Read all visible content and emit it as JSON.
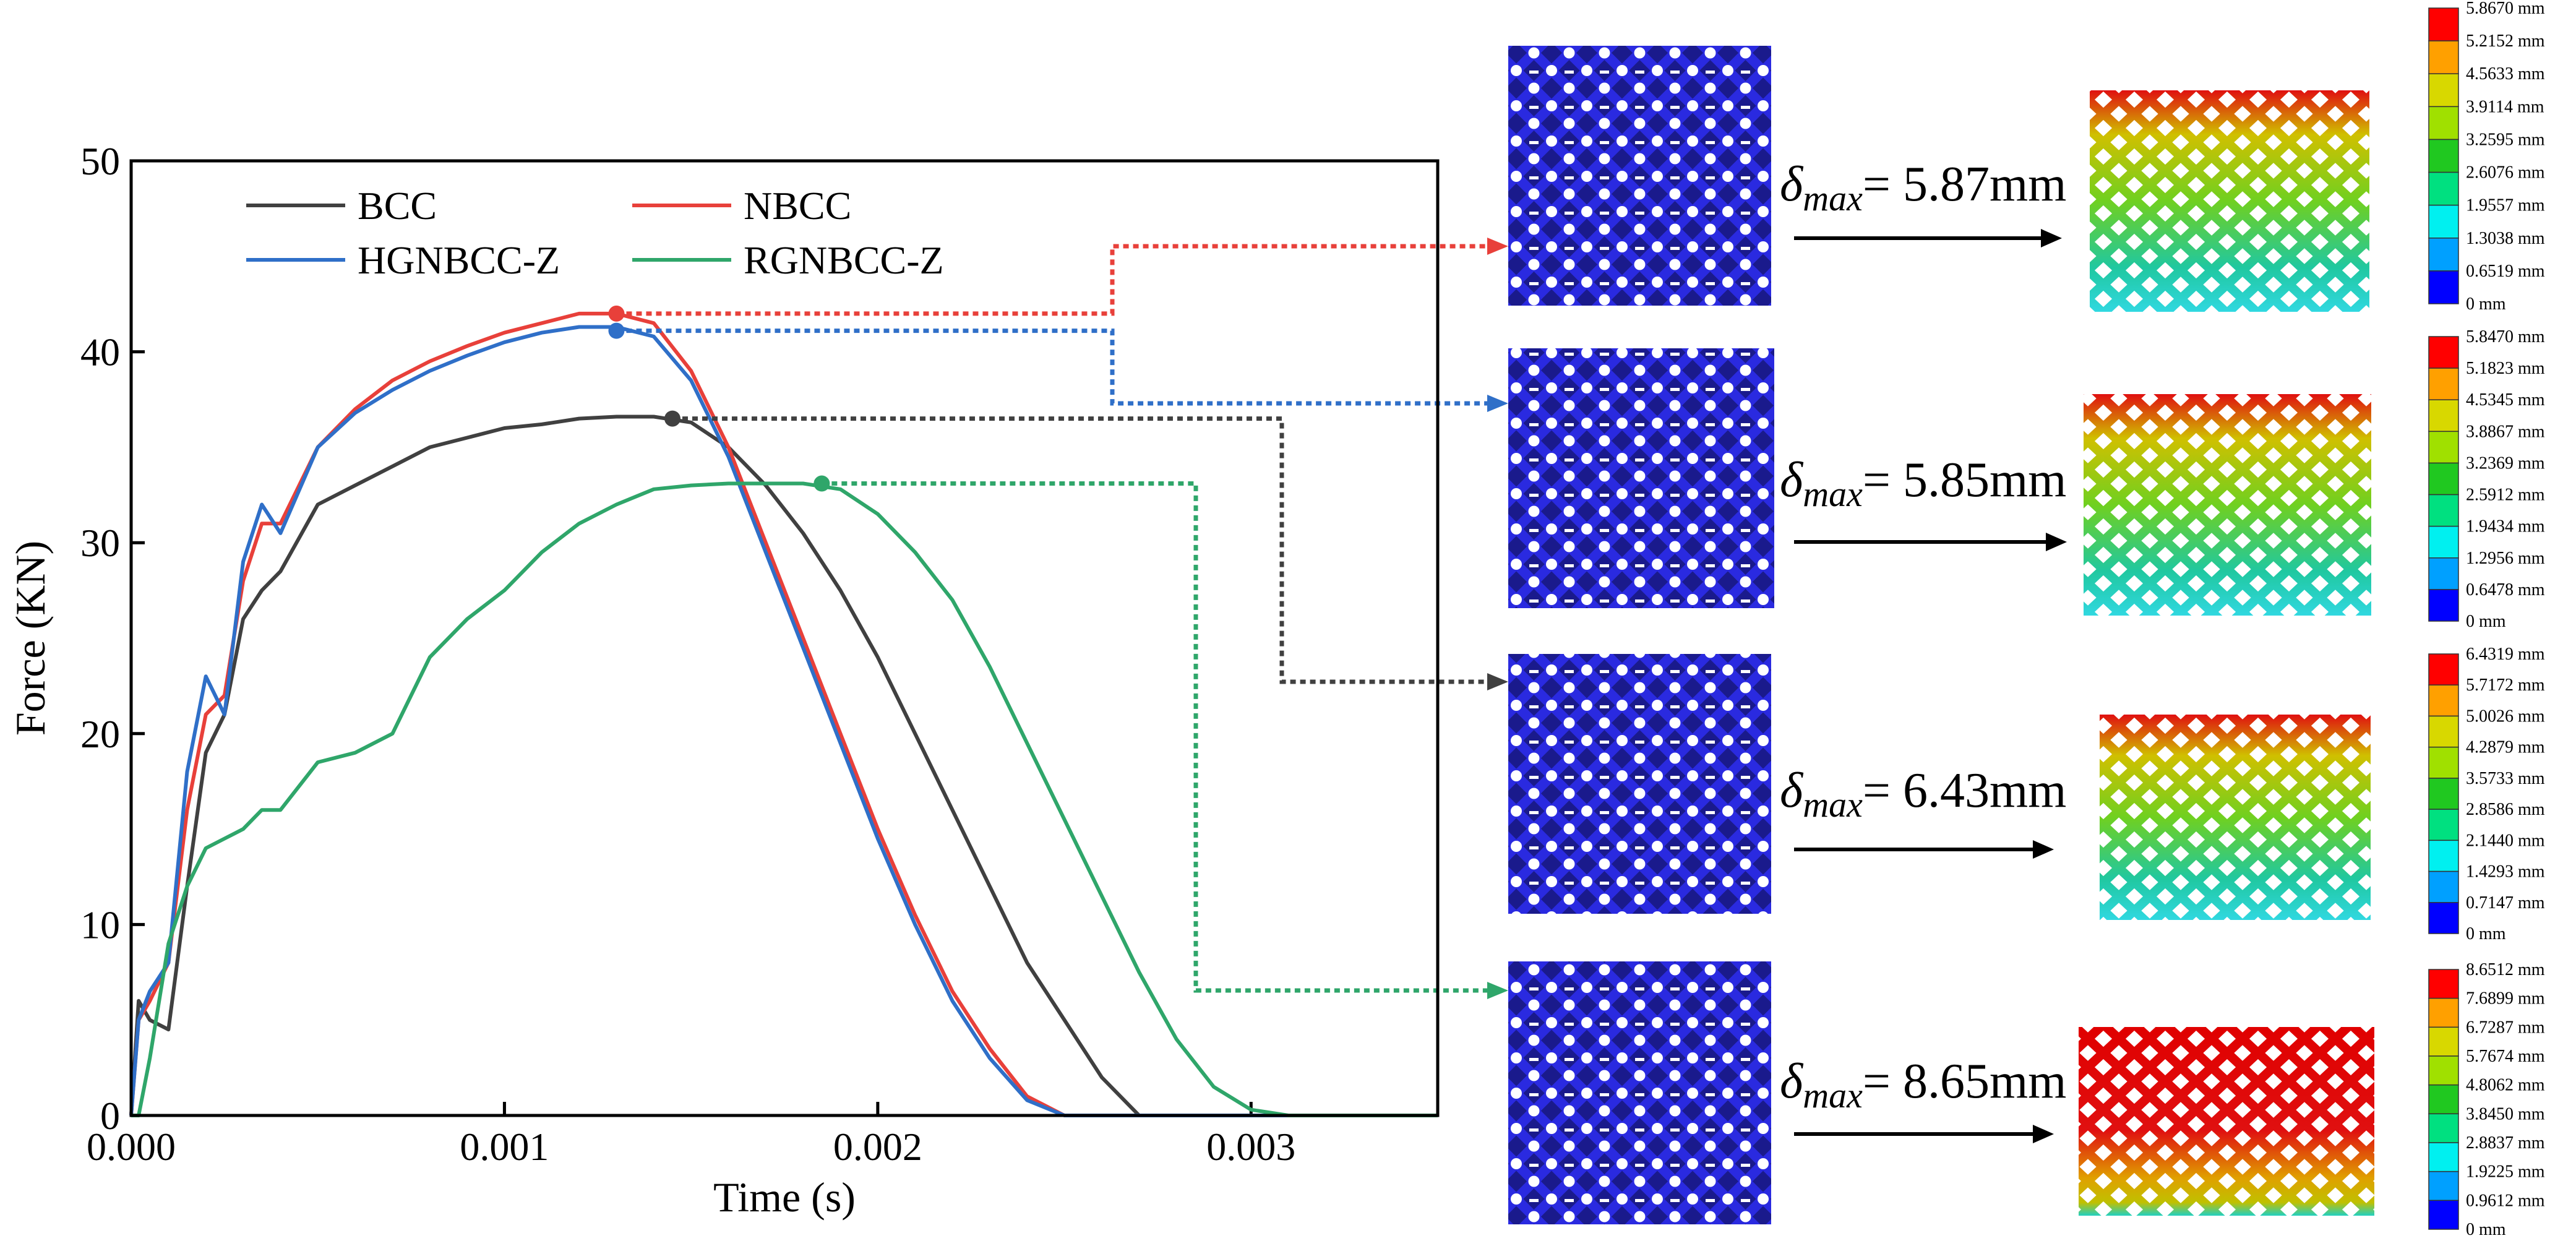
{
  "chart_data": {
    "type": "line",
    "x_label": "Time (s)",
    "y_label": "Force (KN)",
    "x": [
      0,
      2e-05,
      5e-05,
      0.0001,
      0.00015,
      0.0002,
      0.00025,
      0.0003,
      0.00035,
      0.0004,
      0.0005,
      0.0006,
      0.0007,
      0.0008,
      0.0009,
      0.001,
      0.0011,
      0.0012,
      0.0013,
      0.0014,
      0.0015,
      0.0016,
      0.0017,
      0.0018,
      0.0019,
      0.002,
      0.0021,
      0.0022,
      0.0023,
      0.0024,
      0.0025,
      0.0026,
      0.0027,
      0.0028,
      0.0029,
      0.003,
      0.0031,
      0.0035
    ],
    "series": [
      {
        "name": "BCC",
        "color": "#404040",
        "peak_x": 0.00145,
        "peak_y": 36.5,
        "values": [
          0,
          6,
          5,
          4.5,
          12,
          19,
          21,
          26,
          27.5,
          28.5,
          32,
          33,
          34,
          35,
          35.5,
          36,
          36.2,
          36.5,
          36.6,
          36.6,
          36.3,
          35,
          33,
          30.5,
          27.5,
          24,
          20,
          16,
          12,
          8,
          5,
          2,
          0,
          0,
          0,
          0,
          0,
          0
        ]
      },
      {
        "name": "NBCC",
        "color": "#e8403a",
        "peak_x": 0.0013,
        "peak_y": 42,
        "values": [
          0,
          5,
          6,
          8,
          16,
          21,
          22,
          28,
          31,
          31,
          35,
          37,
          38.5,
          39.5,
          40.3,
          41,
          41.5,
          42,
          42,
          41.5,
          39,
          35,
          30,
          25,
          20,
          15,
          10.5,
          6.5,
          3.5,
          1,
          0,
          0,
          0,
          0,
          0,
          0,
          0,
          0
        ]
      },
      {
        "name": "HGNBCC-Z",
        "color": "#2f6fc8",
        "peak_x": 0.0013,
        "peak_y": 41.1,
        "values": [
          0,
          5,
          6.5,
          8,
          18,
          23,
          21,
          29,
          32,
          30.5,
          35,
          36.8,
          38,
          39,
          39.8,
          40.5,
          41,
          41.3,
          41.3,
          40.8,
          38.5,
          34.5,
          29.5,
          24.5,
          19.5,
          14.5,
          10,
          6,
          3,
          0.8,
          0,
          0,
          0,
          0,
          0,
          0,
          0,
          0
        ]
      },
      {
        "name": "RGNBCC-Z",
        "color": "#2fa66a",
        "peak_x": 0.00185,
        "peak_y": 33.1,
        "values": [
          0,
          0,
          3,
          9,
          12,
          14,
          14.5,
          15,
          16,
          16,
          18.5,
          19,
          20,
          24,
          26,
          27.5,
          29.5,
          31,
          32,
          32.8,
          33,
          33.1,
          33.1,
          33.1,
          32.8,
          31.5,
          29.5,
          27,
          23.5,
          19.5,
          15.5,
          11.5,
          7.5,
          4,
          1.5,
          0.3,
          0,
          0
        ]
      }
    ],
    "xlim": [
      0,
      0.0035
    ],
    "xticks": [
      {
        "value": 0,
        "label": "0.000"
      },
      {
        "value": 0.001,
        "label": "0.001"
      },
      {
        "value": 0.002,
        "label": "0.002"
      },
      {
        "value": 0.003,
        "label": "0.003"
      }
    ],
    "ylim": [
      0,
      50
    ],
    "yticks": [
      0,
      10,
      20,
      30,
      40,
      50
    ],
    "legend": "upper left"
  },
  "panels": [
    {
      "symbol": "δ",
      "subscript": "max",
      "value_text": "= 5.87mm",
      "colorbar": [
        "5.8670 mm",
        "5.2152 mm",
        "4.5633 mm",
        "3.9114 mm",
        "3.2595 mm",
        "2.6076 mm",
        "1.9557 mm",
        "1.3038 mm",
        "0.6519 mm",
        "0 mm"
      ]
    },
    {
      "symbol": "δ",
      "subscript": "max",
      "value_text": "= 5.85mm",
      "colorbar": [
        "5.8470 mm",
        "5.1823 mm",
        "4.5345 mm",
        "3.8867 mm",
        "3.2369 mm",
        "2.5912 mm",
        "1.9434 mm",
        "1.2956 mm",
        "0.6478 mm",
        "0 mm"
      ]
    },
    {
      "symbol": "δ",
      "subscript": "max",
      "value_text": "= 6.43mm",
      "colorbar": [
        "6.4319 mm",
        "5.7172 mm",
        "5.0026 mm",
        "4.2879 mm",
        "3.5733 mm",
        "2.8586 mm",
        "2.1440 mm",
        "1.4293 mm",
        "0.7147 mm",
        "0 mm"
      ]
    },
    {
      "symbol": "δ",
      "subscript": "max",
      "value_text": "= 8.65mm",
      "colorbar": [
        "8.6512 mm",
        "7.6899 mm",
        "6.7287 mm",
        "5.7674 mm",
        "4.8062 mm",
        "3.8450 mm",
        "2.8837 mm",
        "1.9225 mm",
        "0.9612 mm",
        "0 mm"
      ]
    }
  ]
}
